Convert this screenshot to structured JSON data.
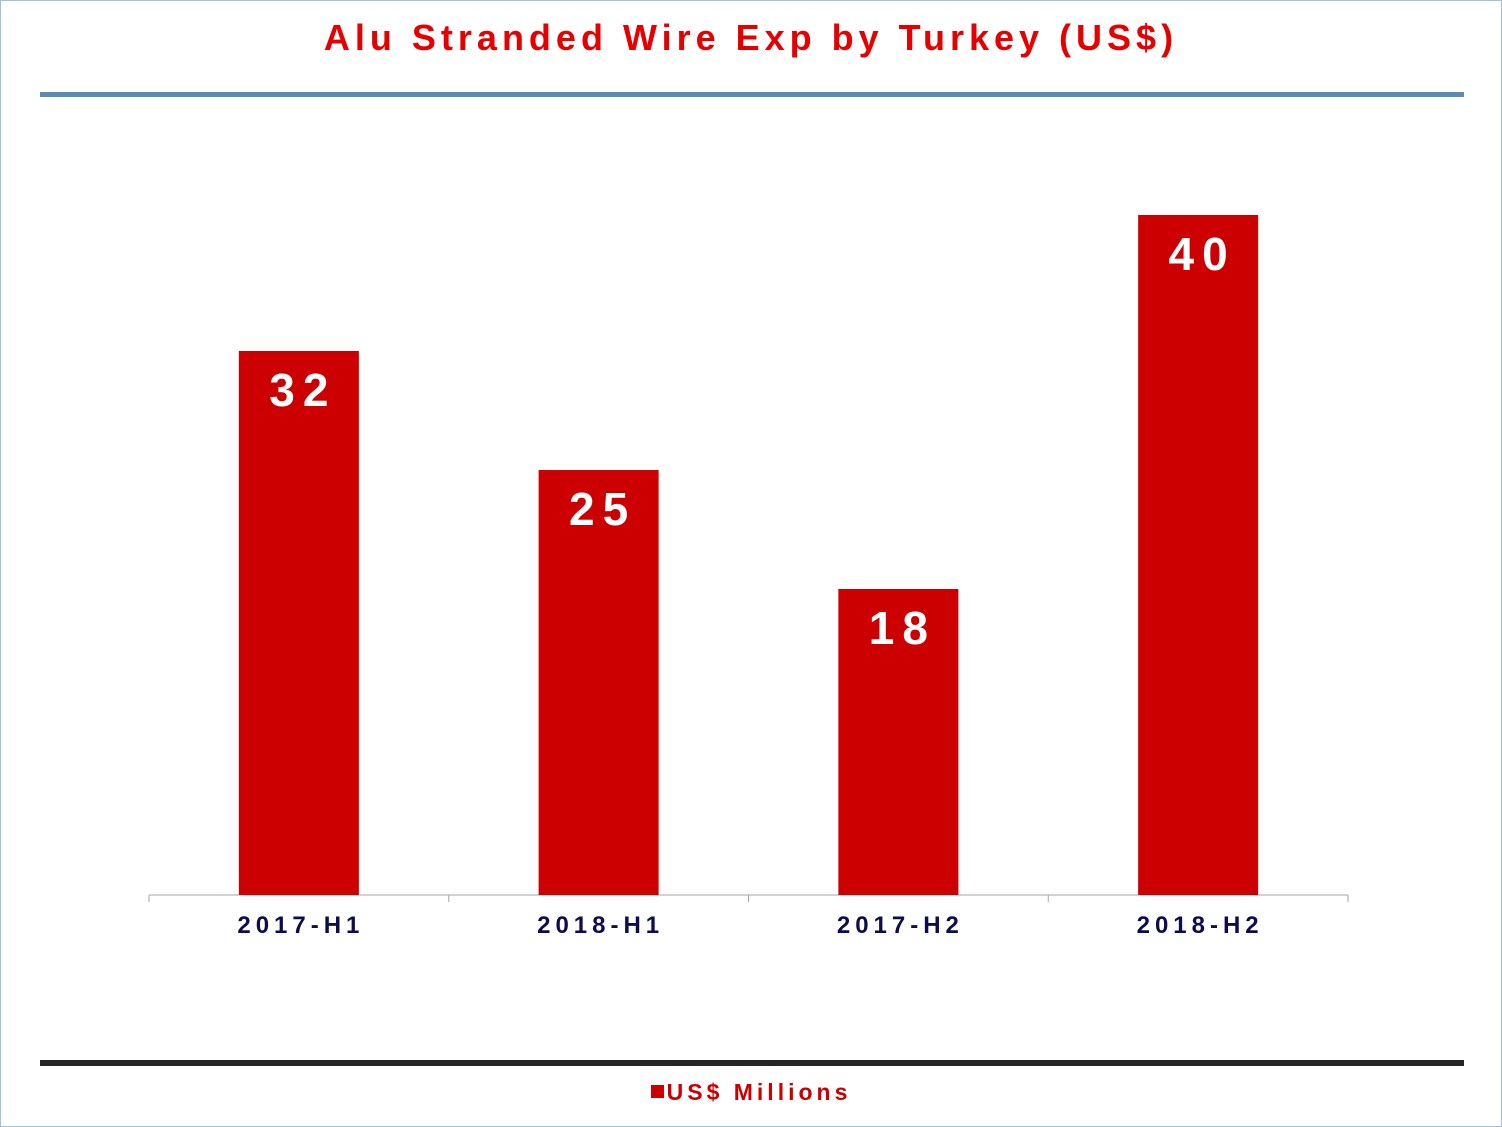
{
  "chart_data": {
    "type": "bar",
    "title": "Alu Stranded Wire Exp by Turkey (US$)",
    "categories": [
      "2017-H1",
      "2018-H1",
      "2017-H2",
      "2018-H2"
    ],
    "series": [
      {
        "name": "US$ Millions",
        "values": [
          32,
          25,
          18,
          40
        ]
      }
    ],
    "data_labels": [
      "32",
      "25",
      "18",
      "40"
    ],
    "xlabel": "",
    "ylabel": "",
    "ylim": [
      0,
      45
    ],
    "grid": false,
    "legend_position": "bottom",
    "colors": {
      "bar": "#cc0000",
      "title": "#e60000",
      "tick_label": "#0d0d4d",
      "top_rule": "#5b8db4",
      "bottom_rule": "#262626"
    }
  }
}
